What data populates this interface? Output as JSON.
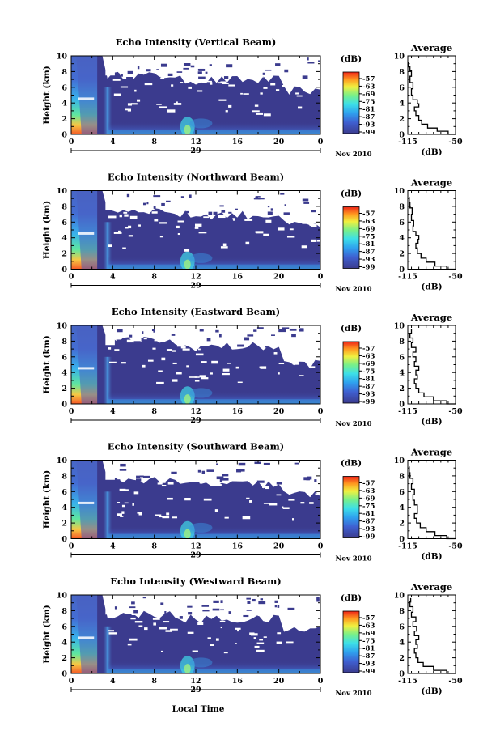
{
  "page": {
    "x_axis_label": "Local Time"
  },
  "chart_data": [
    {
      "type": "heatmap",
      "title": "Echo Intensity (Vertical Beam)",
      "ylabel": "Height (km)",
      "xticks": [
        "0",
        "4",
        "8",
        "12",
        "16",
        "20",
        "0"
      ],
      "yticks": [
        "0",
        "2",
        "4",
        "6",
        "8",
        "10"
      ],
      "xlim": [
        0,
        24
      ],
      "ylim": [
        0,
        10
      ],
      "date_day": "29",
      "date_month": "Nov 2010",
      "colorbar": {
        "unit": "(dB)",
        "ticks": [
          "-57",
          "-63",
          "-69",
          "-75",
          "-81",
          "-87",
          "-93",
          "-99"
        ]
      },
      "profile": {
        "title": "Average",
        "xlabel": "(dB)",
        "xticks": [
          "-115",
          "-50"
        ],
        "yticks": [
          "0",
          "2",
          "4",
          "6",
          "8",
          "10"
        ],
        "xlim": [
          -115,
          -50
        ],
        "points": [
          [
            -50,
            0
          ],
          [
            -60,
            0.4
          ],
          [
            -75,
            0.8
          ],
          [
            -88,
            1.3
          ],
          [
            -96,
            1.8
          ],
          [
            -100,
            2.4
          ],
          [
            -104,
            3.0
          ],
          [
            -106,
            3.5
          ],
          [
            -100,
            3.9
          ],
          [
            -102,
            4.4
          ],
          [
            -108,
            5.0
          ],
          [
            -110,
            5.8
          ],
          [
            -108,
            6.6
          ],
          [
            -112,
            7.4
          ],
          [
            -110,
            8.1
          ],
          [
            -112,
            8.6
          ],
          [
            -114,
            9.2
          ]
        ]
      }
    },
    {
      "type": "heatmap",
      "title": "Echo Intensity (Northward Beam)",
      "ylabel": "Height (km)",
      "xticks": [
        "0",
        "4",
        "8",
        "12",
        "16",
        "20",
        "0"
      ],
      "yticks": [
        "0",
        "2",
        "4",
        "6",
        "8",
        "10"
      ],
      "xlim": [
        0,
        24
      ],
      "ylim": [
        0,
        10
      ],
      "date_day": "29",
      "date_month": "Nov 2010",
      "colorbar": {
        "unit": "(dB)",
        "ticks": [
          "-57",
          "-63",
          "-69",
          "-75",
          "-81",
          "-87",
          "-93",
          "-99"
        ]
      },
      "profile": {
        "title": "Average",
        "xlabel": "(dB)",
        "xticks": [
          "-115",
          "-50"
        ],
        "yticks": [
          "0",
          "2",
          "4",
          "6",
          "8",
          "10"
        ],
        "xlim": [
          -115,
          -50
        ],
        "points": [
          [
            -50,
            0
          ],
          [
            -62,
            0.4
          ],
          [
            -78,
            0.9
          ],
          [
            -90,
            1.4
          ],
          [
            -97,
            2.0
          ],
          [
            -102,
            2.7
          ],
          [
            -104,
            3.3
          ],
          [
            -101,
            3.8
          ],
          [
            -100,
            4.3
          ],
          [
            -104,
            4.8
          ],
          [
            -108,
            5.5
          ],
          [
            -107,
            6.2
          ],
          [
            -110,
            7.0
          ],
          [
            -109,
            7.8
          ],
          [
            -112,
            8.5
          ],
          [
            -113,
            9.2
          ]
        ]
      }
    },
    {
      "type": "heatmap",
      "title": "Echo Intensity (Eastward Beam)",
      "ylabel": "Height (km)",
      "xticks": [
        "0",
        "4",
        "8",
        "12",
        "16",
        "20",
        "0"
      ],
      "yticks": [
        "0",
        "2",
        "4",
        "6",
        "8",
        "10"
      ],
      "xlim": [
        0,
        24
      ],
      "ylim": [
        0,
        10
      ],
      "date_day": "29",
      "date_month": "Nov 2010",
      "colorbar": {
        "unit": "(dB)",
        "ticks": [
          "-57",
          "-63",
          "-69",
          "-75",
          "-81",
          "-87",
          "-93",
          "-99"
        ]
      },
      "profile": {
        "title": "Average",
        "xlabel": "(dB)",
        "xticks": [
          "-115",
          "-50"
        ],
        "yticks": [
          "0",
          "2",
          "4",
          "6",
          "8",
          "10"
        ],
        "xlim": [
          -115,
          -50
        ],
        "points": [
          [
            -50,
            0
          ],
          [
            -62,
            0.4
          ],
          [
            -80,
            0.9
          ],
          [
            -93,
            1.4
          ],
          [
            -100,
            2.0
          ],
          [
            -104,
            2.6
          ],
          [
            -106,
            3.2
          ],
          [
            -102,
            3.7
          ],
          [
            -104,
            4.3
          ],
          [
            -100,
            4.8
          ],
          [
            -106,
            5.4
          ],
          [
            -104,
            6.0
          ],
          [
            -108,
            6.6
          ],
          [
            -104,
            7.2
          ],
          [
            -110,
            7.8
          ],
          [
            -108,
            8.4
          ],
          [
            -112,
            9.0
          ],
          [
            -110,
            9.5
          ]
        ]
      }
    },
    {
      "type": "heatmap",
      "title": "Echo Intensity (Southward Beam)",
      "ylabel": "Height (km)",
      "xticks": [
        "0",
        "4",
        "8",
        "12",
        "16",
        "20",
        "0"
      ],
      "yticks": [
        "0",
        "2",
        "4",
        "6",
        "8",
        "10"
      ],
      "xlim": [
        0,
        24
      ],
      "ylim": [
        0,
        10
      ],
      "date_day": "29",
      "date_month": "Nov 2010",
      "colorbar": {
        "unit": "(dB)",
        "ticks": [
          "-57",
          "-63",
          "-69",
          "-75",
          "-81",
          "-87",
          "-93",
          "-99"
        ]
      },
      "profile": {
        "title": "Average",
        "xlabel": "(dB)",
        "xticks": [
          "-115",
          "-50"
        ],
        "yticks": [
          "0",
          "2",
          "4",
          "6",
          "8",
          "10"
        ],
        "xlim": [
          -115,
          -50
        ],
        "points": [
          [
            -50,
            0
          ],
          [
            -62,
            0.4
          ],
          [
            -78,
            0.9
          ],
          [
            -90,
            1.4
          ],
          [
            -98,
            2.0
          ],
          [
            -103,
            2.6
          ],
          [
            -106,
            3.2
          ],
          [
            -102,
            3.8
          ],
          [
            -102,
            4.3
          ],
          [
            -106,
            4.9
          ],
          [
            -108,
            5.6
          ],
          [
            -106,
            6.3
          ],
          [
            -110,
            7.0
          ],
          [
            -108,
            7.7
          ],
          [
            -112,
            8.4
          ],
          [
            -113,
            9.2
          ]
        ]
      }
    },
    {
      "type": "heatmap",
      "title": "Echo Intensity (Westward Beam)",
      "ylabel": "Height (km)",
      "xticks": [
        "0",
        "4",
        "8",
        "12",
        "16",
        "20",
        "0"
      ],
      "yticks": [
        "0",
        "2",
        "4",
        "6",
        "8",
        "10"
      ],
      "xlim": [
        0,
        24
      ],
      "ylim": [
        0,
        10
      ],
      "date_day": "29",
      "date_month": "Nov 2010",
      "colorbar": {
        "unit": "(dB)",
        "ticks": [
          "-57",
          "-63",
          "-69",
          "-75",
          "-81",
          "-87",
          "-93",
          "-99"
        ]
      },
      "profile": {
        "title": "Average",
        "xlabel": "(dB)",
        "xticks": [
          "-115",
          "-50"
        ],
        "yticks": [
          "0",
          "2",
          "4",
          "6",
          "8",
          "10"
        ],
        "xlim": [
          -115,
          -50
        ],
        "points": [
          [
            -50,
            0
          ],
          [
            -62,
            0.4
          ],
          [
            -80,
            0.9
          ],
          [
            -94,
            1.4
          ],
          [
            -101,
            2.0
          ],
          [
            -104,
            2.6
          ],
          [
            -106,
            3.2
          ],
          [
            -102,
            3.7
          ],
          [
            -104,
            4.3
          ],
          [
            -100,
            4.8
          ],
          [
            -106,
            5.4
          ],
          [
            -103,
            6.0
          ],
          [
            -108,
            6.6
          ],
          [
            -104,
            7.2
          ],
          [
            -110,
            7.8
          ],
          [
            -108,
            8.5
          ],
          [
            -112,
            9.1
          ],
          [
            -111,
            9.6
          ]
        ]
      }
    }
  ]
}
